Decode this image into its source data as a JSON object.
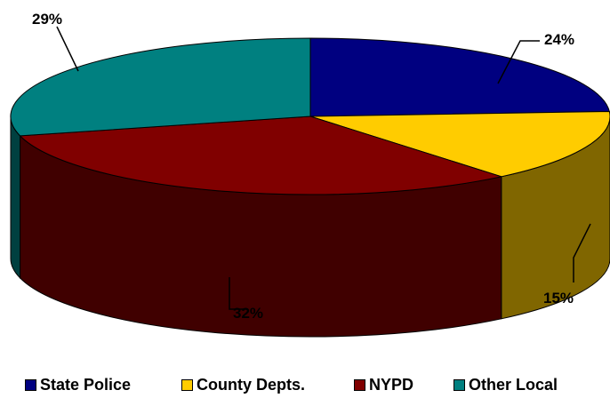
{
  "chart_data": {
    "type": "pie",
    "title": "",
    "slices": [
      {
        "name": "State Police",
        "value": 24,
        "label": "24%",
        "color": "#000080"
      },
      {
        "name": "County Depts.",
        "value": 15,
        "label": "15%",
        "color": "#FFCC00"
      },
      {
        "name": "NYPD",
        "value": 32,
        "label": "32%",
        "color": "#800000"
      },
      {
        "name": "Other Local",
        "value": 29,
        "label": "29%",
        "color": "#008080"
      }
    ],
    "legend_position": "bottom",
    "style": "3d"
  }
}
